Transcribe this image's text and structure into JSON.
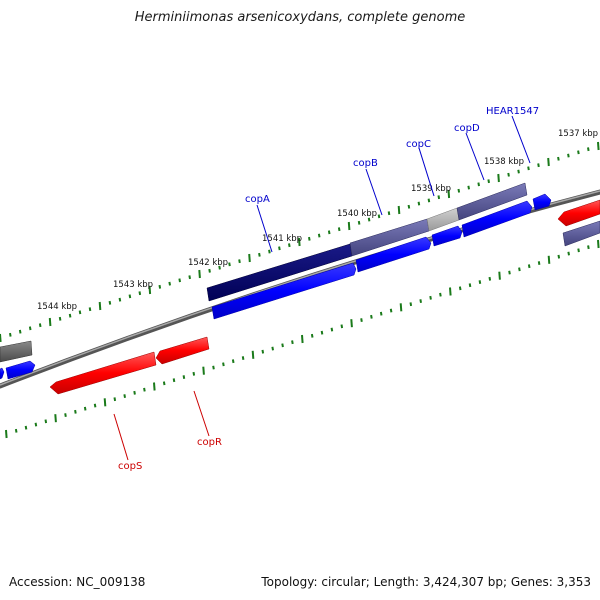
{
  "title": "Herminiimonas arsenicoxydans, complete genome",
  "footer": {
    "accession": "Accession: NC_009138",
    "summary": "Topology: circular; Length: 3,424,307 bp; Genes: 3,353"
  },
  "ruler": {
    "labels": [
      "1537 kbp",
      "1538 kbp",
      "1539 kbp",
      "1540 kbp",
      "1541 kbp",
      "1542 kbp",
      "1543 kbp",
      "1544 kbp"
    ]
  },
  "genes": {
    "plus": [
      "HEAR1547",
      "copD",
      "copC",
      "copB",
      "copA"
    ],
    "minus": [
      "copR",
      "copS"
    ]
  },
  "colors": {
    "backbone": "#808080",
    "ruler_tick": "#1a7a1a",
    "cds_plus": "#0000ff",
    "cds_minus": "#ff0000",
    "label_plus": "#0000cc",
    "label_minus": "#cc0000",
    "protein_dark": "#000066",
    "protein_mid": "#5a5a9a",
    "protein_light": "#b0b0b0",
    "protein_gray": "#606060"
  }
}
